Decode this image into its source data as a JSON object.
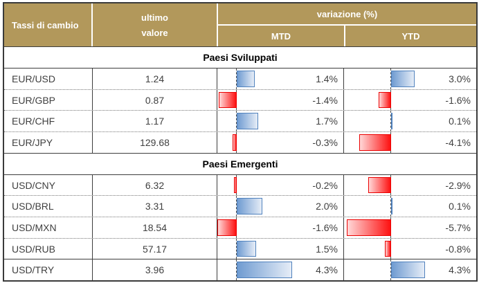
{
  "header": {
    "rates_label": "Tassi di cambio",
    "value_label_line1": "ultimo",
    "value_label_line2": "valore",
    "variation_label": "variazione (%)",
    "mtd_label": "MTD",
    "ytd_label": "YTD"
  },
  "colors": {
    "header_bg": "#b2985b",
    "header_text": "#ffffff",
    "positive_bar_solid": "#6f9bd1",
    "positive_bar_light": "#e6edf7",
    "positive_bar_border": "#4f81bd",
    "negative_bar_solid": "#fd1111",
    "negative_bar_light": "#ffd8d8",
    "negative_bar_border": "#ea0000"
  },
  "chart_data": {
    "type": "table",
    "title": "Tassi di cambio",
    "columns": [
      "Tassi di cambio",
      "ultimo valore",
      "variazione (%) MTD",
      "variazione (%) YTD"
    ],
    "legend_note": "blue bars = positive variation, red bars = negative variation, dashed line = zero axis",
    "mtd_axis_range": [
      -1.6,
      4.3
    ],
    "ytd_axis_range": [
      -5.7,
      4.3
    ],
    "sections": [
      {
        "title": "Paesi Sviluppati",
        "rows": [
          {
            "pair": "EUR/USD",
            "value": "1.24",
            "mtd": 1.4,
            "mtd_label": "1.4%",
            "ytd": 3.0,
            "ytd_label": "3.0%"
          },
          {
            "pair": "EUR/GBP",
            "value": "0.87",
            "mtd": -1.4,
            "mtd_label": "-1.4%",
            "ytd": -1.6,
            "ytd_label": "-1.6%"
          },
          {
            "pair": "EUR/CHF",
            "value": "1.17",
            "mtd": 1.7,
            "mtd_label": "1.7%",
            "ytd": 0.1,
            "ytd_label": "0.1%"
          },
          {
            "pair": "EUR/JPY",
            "value": "129.68",
            "mtd": -0.3,
            "mtd_label": "-0.3%",
            "ytd": -4.1,
            "ytd_label": "-4.1%"
          }
        ]
      },
      {
        "title": "Paesi Emergenti",
        "rows": [
          {
            "pair": "USD/CNY",
            "value": "6.32",
            "mtd": -0.2,
            "mtd_label": "-0.2%",
            "ytd": -2.9,
            "ytd_label": "-2.9%"
          },
          {
            "pair": "USD/BRL",
            "value": "3.31",
            "mtd": 2.0,
            "mtd_label": "2.0%",
            "ytd": 0.1,
            "ytd_label": "0.1%"
          },
          {
            "pair": "USD/MXN",
            "value": "18.54",
            "mtd": -1.6,
            "mtd_label": "-1.6%",
            "ytd": -5.7,
            "ytd_label": "-5.7%"
          },
          {
            "pair": "USD/RUB",
            "value": "57.17",
            "mtd": 1.5,
            "mtd_label": "1.5%",
            "ytd": -0.8,
            "ytd_label": "-0.8%"
          },
          {
            "pair": "USD/TRY",
            "value": "3.96",
            "mtd": 4.3,
            "mtd_label": "4.3%",
            "ytd": 4.3,
            "ytd_label": "4.3%",
            "top_divider": "solid"
          }
        ]
      }
    ]
  }
}
